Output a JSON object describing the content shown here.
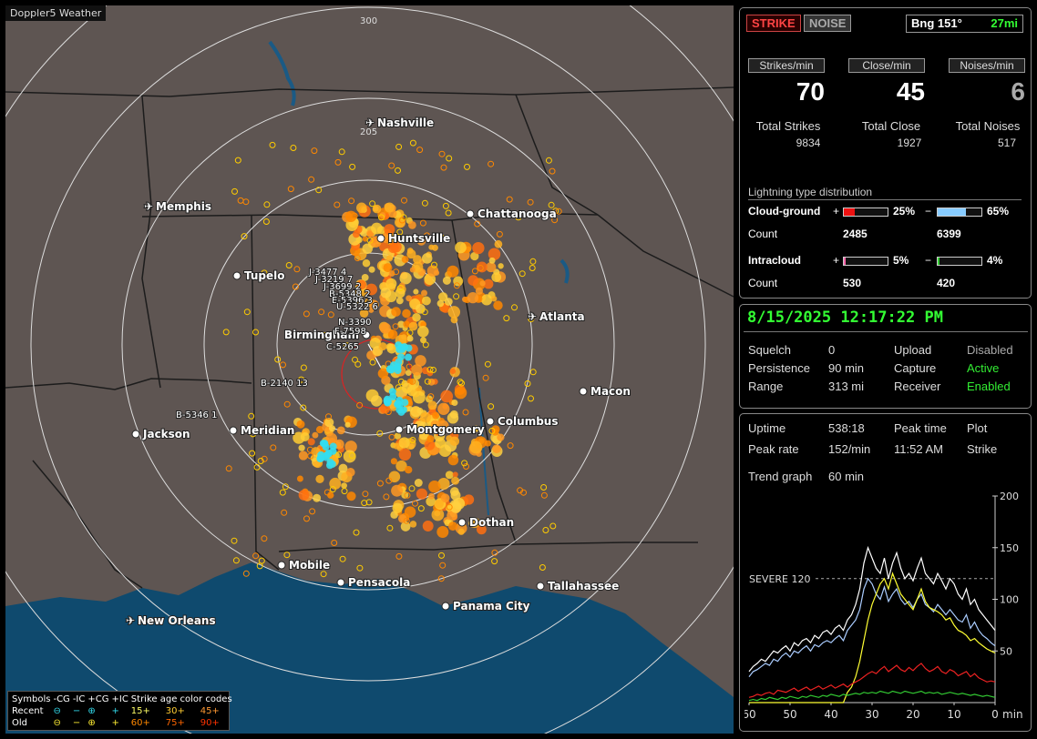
{
  "app_title": "Doppler5 Weather",
  "map": {
    "range_labels": [
      "300",
      "205"
    ],
    "cities": [
      {
        "name": "Nashville",
        "icon": "airport"
      },
      {
        "name": "Memphis",
        "icon": "airport"
      },
      {
        "name": "Chattanooga",
        "icon": "dot"
      },
      {
        "name": "Huntsville",
        "icon": "dot"
      },
      {
        "name": "Tupelo",
        "icon": "dot"
      },
      {
        "name": "Atlanta",
        "icon": "airport"
      },
      {
        "name": "Birmingham",
        "icon": "dot"
      },
      {
        "name": "Macon",
        "icon": "dot"
      },
      {
        "name": "Jackson",
        "icon": "dot"
      },
      {
        "name": "Meridian",
        "icon": "dot"
      },
      {
        "name": "Montgomery",
        "icon": "dot"
      },
      {
        "name": "Columbus",
        "icon": "dot"
      },
      {
        "name": "Dothan",
        "icon": "dot"
      },
      {
        "name": "Mobile",
        "icon": "dot"
      },
      {
        "name": "Pensacola",
        "icon": "dot"
      },
      {
        "name": "Tallahassee",
        "icon": "dot"
      },
      {
        "name": "Panama City",
        "icon": "dot"
      },
      {
        "name": "New Orleans",
        "icon": "airport"
      }
    ],
    "storm_tags": [
      "J-3477 4",
      "J-3219 7",
      "J-3699 2",
      "B-5348 2",
      "E-5396 3",
      "U-5322 6",
      "N-3390",
      "F-7598",
      "C-5265",
      "B-2140 13",
      "B-5346 1"
    ]
  },
  "legend": {
    "row1": [
      "Symbols",
      "-CG",
      "-IC",
      "+CG",
      "+IC",
      "Strike age color codes"
    ],
    "row2": [
      "Recent",
      "⊖",
      "−",
      "⊕",
      "+",
      "15+",
      "30+",
      "45+"
    ],
    "row3": [
      "Old",
      "⊖",
      "−",
      "⊕",
      "+",
      "60+",
      "75+",
      "90+"
    ]
  },
  "panel1": {
    "strike_btn": "STRIKE",
    "noise_btn": "NOISE",
    "bearing": "Bng 151°",
    "distance": "27mi",
    "headers": [
      "Strikes/min",
      "Close/min",
      "Noises/min"
    ],
    "rates": [
      "70",
      "45",
      "6"
    ],
    "total_labels": [
      "Total Strikes",
      "Total Close",
      "Total Noises"
    ],
    "totals": [
      "9834",
      "1927",
      "517"
    ],
    "dist_title": "Lightning type distribution",
    "cg_label": "Cloud-ground",
    "cg_pos_sign": "+",
    "cg_pos_pct": "25%",
    "cg_neg_sign": "−",
    "cg_neg_pct": "65%",
    "count_label": "Count",
    "cg_pos_count": "2485",
    "cg_neg_count": "6399",
    "ic_label": "Intracloud",
    "ic_pos_sign": "+",
    "ic_pos_pct": "5%",
    "ic_neg_sign": "−",
    "ic_neg_pct": "4%",
    "ic_pos_count": "530",
    "ic_neg_count": "420",
    "bars": {
      "cg_pos": 0.25,
      "cg_neg": 0.65,
      "ic_pos": 0.05,
      "ic_neg": 0.04
    },
    "colors": {
      "cg_pos": "#ee1111",
      "cg_neg": "#88ccff",
      "ic_pos": "#ff66aa",
      "ic_neg": "#33cc33"
    }
  },
  "panel2": {
    "datetime": "8/15/2025 12:17:22 PM",
    "squelch_label": "Squelch",
    "squelch": "0",
    "persistence_label": "Persistence",
    "persistence": "90 min",
    "range_label": "Range",
    "range": "313 mi",
    "upload_label": "Upload",
    "upload": "Disabled",
    "capture_label": "Capture",
    "capture": "Active",
    "receiver_label": "Receiver",
    "receiver": "Enabled"
  },
  "panel3": {
    "uptime_label": "Uptime",
    "uptime": "538:18",
    "peak_time_label": "Peak time",
    "peak_time": "11:52 AM",
    "plot_label": "Plot",
    "plot": "Strike",
    "peak_rate_label": "Peak rate",
    "peak_rate": "152/min",
    "trend_label": "Trend graph",
    "trend": "60 min"
  },
  "chart_data": {
    "type": "line",
    "title": "",
    "xlabel": "min",
    "ylabel": "",
    "x_ticks": [
      "60",
      "50",
      "40",
      "30",
      "20",
      "10",
      "0"
    ],
    "y_ticks": [
      "50",
      "100",
      "150",
      "200"
    ],
    "xlim": [
      60,
      0
    ],
    "ylim": [
      0,
      200
    ],
    "threshold": {
      "label": "SEVERE 120",
      "value": 120
    },
    "series": [
      {
        "color": "#ffffff",
        "values": [
          30,
          35,
          38,
          42,
          40,
          45,
          50,
          48,
          52,
          55,
          50,
          58,
          55,
          60,
          62,
          58,
          65,
          62,
          68,
          70,
          66,
          72,
          75,
          70,
          80,
          85,
          95,
          110,
          135,
          150,
          140,
          130,
          125,
          140,
          120,
          135,
          145,
          130,
          120,
          125,
          118,
          130,
          140,
          125,
          120,
          115,
          125,
          118,
          110,
          120,
          115,
          105,
          100,
          110,
          95,
          100,
          90,
          85,
          80,
          75,
          70
        ]
      },
      {
        "color": "#aaccff",
        "values": [
          25,
          30,
          32,
          35,
          38,
          36,
          42,
          40,
          45,
          48,
          44,
          50,
          48,
          52,
          55,
          50,
          56,
          54,
          58,
          60,
          58,
          62,
          65,
          60,
          70,
          75,
          80,
          90,
          110,
          120,
          115,
          105,
          100,
          112,
          98,
          105,
          110,
          100,
          95,
          98,
          92,
          100,
          105,
          95,
          92,
          88,
          95,
          90,
          85,
          90,
          85,
          80,
          78,
          85,
          72,
          78,
          70,
          65,
          62,
          58,
          55
        ]
      },
      {
        "color": "#ffff33",
        "values": [
          0,
          0,
          0,
          0,
          0,
          0,
          0,
          0,
          0,
          0,
          0,
          0,
          0,
          0,
          0,
          0,
          0,
          0,
          0,
          0,
          0,
          0,
          0,
          0,
          10,
          15,
          25,
          40,
          60,
          80,
          95,
          105,
          115,
          120,
          110,
          125,
          115,
          105,
          100,
          95,
          90,
          100,
          110,
          98,
          92,
          90,
          88,
          85,
          80,
          82,
          75,
          70,
          68,
          65,
          60,
          62,
          58,
          55,
          52,
          50,
          48
        ]
      },
      {
        "color": "#ee2222",
        "values": [
          5,
          6,
          8,
          7,
          9,
          10,
          8,
          12,
          11,
          10,
          12,
          14,
          11,
          13,
          15,
          12,
          14,
          16,
          13,
          15,
          17,
          14,
          16,
          18,
          15,
          18,
          20,
          22,
          25,
          28,
          30,
          28,
          32,
          35,
          30,
          33,
          36,
          32,
          30,
          34,
          31,
          35,
          38,
          33,
          30,
          32,
          35,
          30,
          28,
          32,
          30,
          26,
          28,
          30,
          25,
          28,
          24,
          22,
          20,
          21,
          20
        ]
      },
      {
        "color": "#33cc33",
        "values": [
          2,
          3,
          2,
          4,
          3,
          5,
          4,
          3,
          5,
          4,
          6,
          5,
          4,
          6,
          5,
          7,
          6,
          5,
          7,
          6,
          8,
          7,
          6,
          8,
          7,
          8,
          9,
          8,
          10,
          9,
          10,
          9,
          11,
          10,
          9,
          11,
          10,
          9,
          11,
          10,
          9,
          10,
          11,
          9,
          10,
          9,
          10,
          8,
          9,
          10,
          9,
          8,
          9,
          8,
          7,
          8,
          7,
          6,
          7,
          6,
          5
        ]
      }
    ]
  }
}
